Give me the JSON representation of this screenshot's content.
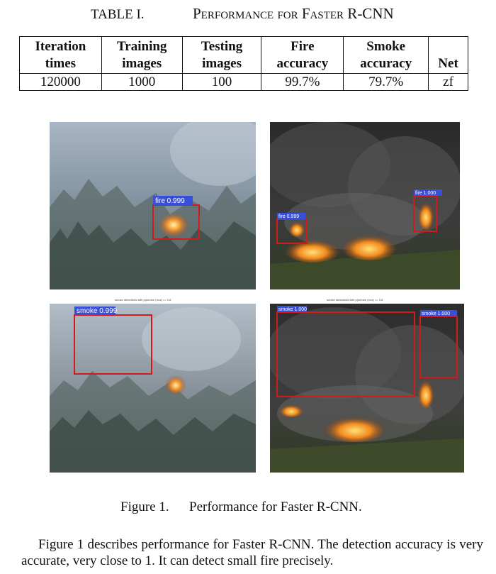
{
  "table": {
    "caption_label": "TABLE I.",
    "caption_title": "Performance for Faster R-CNN",
    "headers": [
      [
        "Iteration",
        "times"
      ],
      [
        "Training",
        "images"
      ],
      [
        "Testing",
        "images"
      ],
      [
        "Fire",
        "accuracy"
      ],
      [
        "Smoke",
        "accuracy"
      ],
      [
        "",
        "Net"
      ]
    ],
    "row": [
      "120000",
      "1000",
      "100",
      "99.7%",
      "79.7%",
      "zf"
    ]
  },
  "figure": {
    "panels": [
      {
        "detections": [
          {
            "label": "fire 0.999",
            "color": "#d11a1a"
          }
        ]
      },
      {
        "detections": [
          {
            "label": "fire 0.999",
            "color": "#d11a1a"
          },
          {
            "label": "fire 1.000",
            "color": "#d11a1a"
          }
        ]
      },
      {
        "subtitle": "smoke detections with p(smoke | box) >= 0.8",
        "detections": [
          {
            "label": "smoke 0.999",
            "color": "#d11a1a"
          }
        ]
      },
      {
        "subtitle": "smoke detections with p(smoke | box) >= 0.8",
        "detections": [
          {
            "label": "smoke 1.000",
            "color": "#d11a1a"
          },
          {
            "label": "smoke 1.000",
            "color": "#d11a1a"
          }
        ]
      }
    ],
    "label_bg": "#3a4fd8",
    "caption_label": "Figure 1.",
    "caption_text": "Performance for Faster R-CNN."
  },
  "paragraph": "Figure 1 describes performance for Faster R-CNN. The detection accuracy is very accurate, very close to 1. It can detect small fire precisely."
}
